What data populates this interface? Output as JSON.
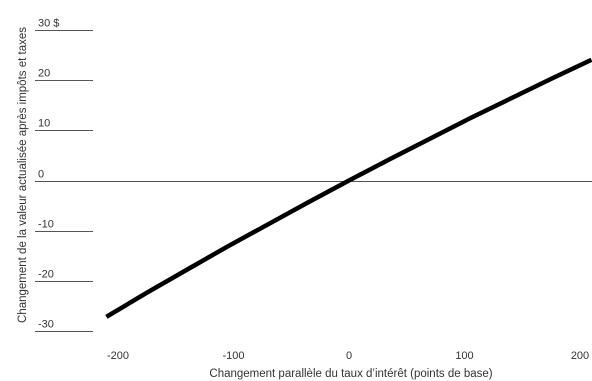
{
  "chart_data": {
    "type": "line",
    "x": [
      -210,
      -175,
      -140,
      -105,
      -70,
      -35,
      0,
      35,
      70,
      105,
      140,
      175,
      210
    ],
    "series": [
      {
        "values": [
          -27.1,
          -22.3,
          -17.7,
          -13.1,
          -8.7,
          -4.3,
          0,
          4.2,
          8.3,
          12.4,
          16.3,
          20.2,
          24.0
        ]
      }
    ],
    "xlabel": "Changement parallèle du taux d’intérêt (points de base)",
    "ylabel": "Changement de la valeur actualisée après impôts et taxes",
    "xticks": [
      {
        "value": -200,
        "label": "-200"
      },
      {
        "value": -100,
        "label": "-100"
      },
      {
        "value": 0,
        "label": "0"
      },
      {
        "value": 100,
        "label": "100"
      },
      {
        "value": 200,
        "label": "200"
      }
    ],
    "yticks": [
      {
        "value": 30,
        "label": "30 $"
      },
      {
        "value": 20,
        "label": "20"
      },
      {
        "value": 10,
        "label": "10"
      },
      {
        "value": 0,
        "label": "0"
      },
      {
        "value": -10,
        "label": "-10"
      },
      {
        "value": -20,
        "label": "-20"
      },
      {
        "value": -30,
        "label": "-30"
      }
    ],
    "xlim": [
      -210,
      210
    ],
    "ylim": [
      -30,
      30
    ],
    "grid": false,
    "colors": {
      "line": "#000000",
      "text": "#333333",
      "rule": "#555555"
    }
  }
}
